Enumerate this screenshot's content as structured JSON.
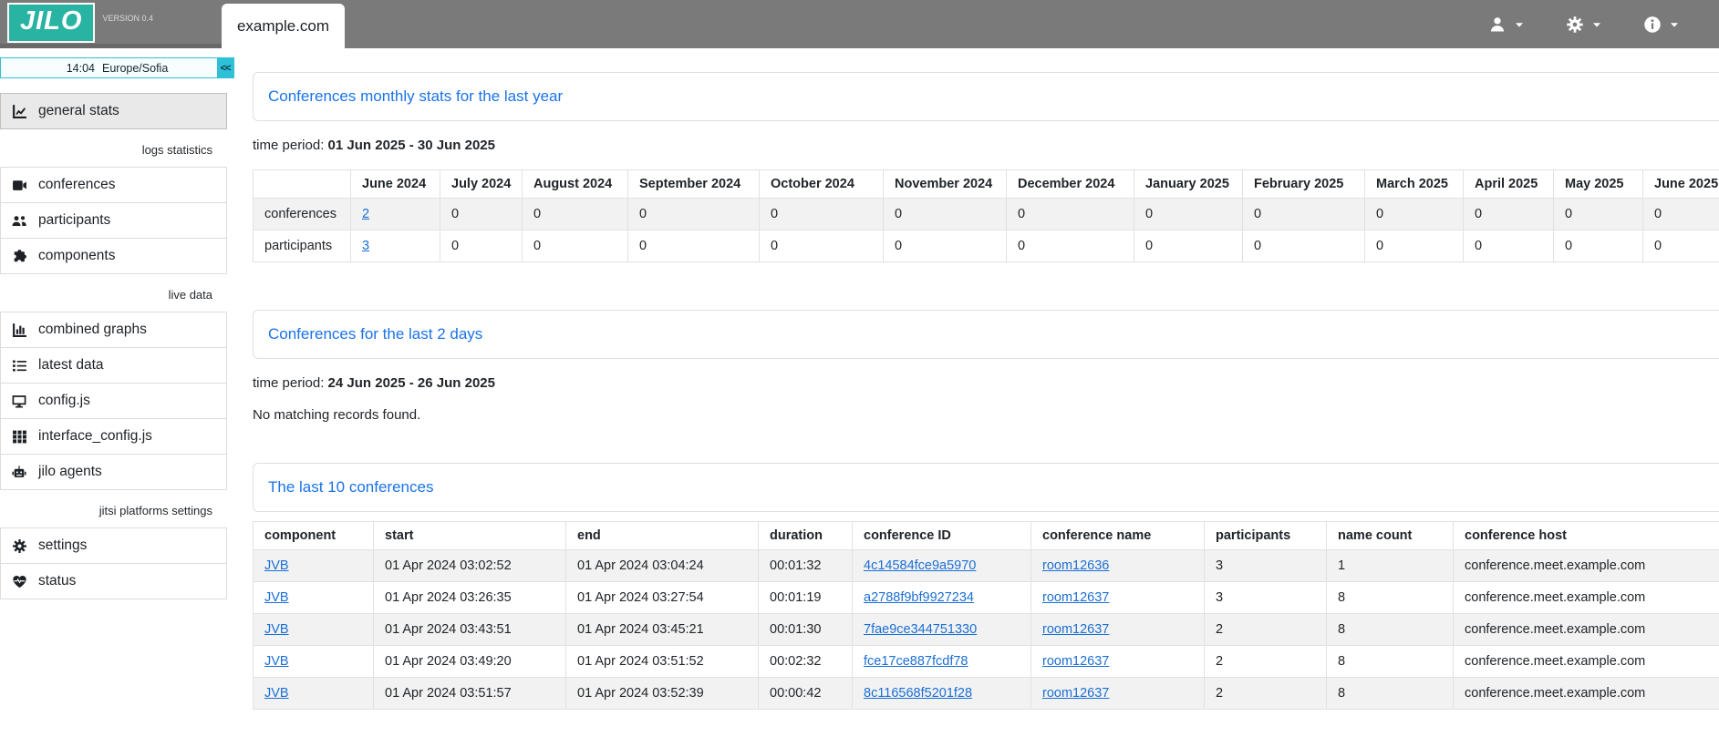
{
  "header": {
    "logo_text": "JILO",
    "version": "VERSION 0.4",
    "tab_label": "example.com",
    "menu_icons": [
      "user-icon",
      "gear-icon",
      "info-icon"
    ]
  },
  "sidebar": {
    "clock": {
      "time": "14:04",
      "timezone": "Europe/Sofia",
      "collapse_button": "<<"
    },
    "sections": [
      {
        "label": "",
        "items": [
          {
            "label": "general stats",
            "icon": "chart-line-icon",
            "active": true
          }
        ]
      },
      {
        "label": "logs statistics",
        "items": [
          {
            "label": "conferences",
            "icon": "video-camera-icon"
          },
          {
            "label": "participants",
            "icon": "users-icon"
          },
          {
            "label": "components",
            "icon": "puzzle-piece-icon"
          }
        ]
      },
      {
        "label": "live data",
        "items": [
          {
            "label": "combined graphs",
            "icon": "chart-column-icon"
          },
          {
            "label": "latest data",
            "icon": "list-icon"
          },
          {
            "label": "config.js",
            "icon": "desktop-icon"
          },
          {
            "label": "interface_config.js",
            "icon": "grid-icon"
          },
          {
            "label": "jilo agents",
            "icon": "robot-icon"
          }
        ]
      },
      {
        "label": "jitsi platforms settings",
        "items": [
          {
            "label": "settings",
            "icon": "gear-icon"
          },
          {
            "label": "status",
            "icon": "heart-pulse-icon"
          }
        ]
      }
    ]
  },
  "main": {
    "monthly_stats": {
      "title": "Conferences monthly stats for the last year",
      "time_period_label": "time period:",
      "time_period_value": "01 Jun 2025 - 30 Jun 2025",
      "table": {
        "columns": [
          "",
          "June 2024",
          "July 2024",
          "August 2024",
          "September 2024",
          "October 2024",
          "November 2024",
          "December 2024",
          "January 2025",
          "February 2025",
          "March 2025",
          "April 2025",
          "May 2025",
          "June 2025"
        ],
        "rows": [
          {
            "cells": [
              "conferences",
              {
                "text": "2",
                "link": true
              },
              "0",
              "0",
              "0",
              "0",
              "0",
              "0",
              "0",
              "0",
              "0",
              "0",
              "0",
              "0"
            ]
          },
          {
            "cells": [
              "participants",
              {
                "text": "3",
                "link": true
              },
              "0",
              "0",
              "0",
              "0",
              "0",
              "0",
              "0",
              "0",
              "0",
              "0",
              "0",
              "0"
            ]
          }
        ]
      }
    },
    "last_2_days": {
      "title": "Conferences for the last 2 days",
      "time_period_label": "time period:",
      "time_period_value": "24 Jun 2025 - 26 Jun 2025",
      "empty_message": "No matching records found."
    },
    "last_10": {
      "title": "The last 10 conferences",
      "table": {
        "columns": [
          "component",
          "start",
          "end",
          "duration",
          "conference ID",
          "conference name",
          "participants",
          "name count",
          "conference host"
        ],
        "rows": [
          {
            "cells": [
              {
                "text": "JVB",
                "link": true
              },
              "01 Apr 2024 03:02:52",
              "01 Apr 2024 03:04:24",
              "00:01:32",
              {
                "text": "4c14584fce9a5970",
                "link": true
              },
              {
                "text": "room12636",
                "link": true
              },
              "3",
              "1",
              "conference.meet.example.com"
            ]
          },
          {
            "cells": [
              {
                "text": "JVB",
                "link": true
              },
              "01 Apr 2024 03:26:35",
              "01 Apr 2024 03:27:54",
              "00:01:19",
              {
                "text": "a2788f9bf9927234",
                "link": true
              },
              {
                "text": "room12637",
                "link": true
              },
              "3",
              "8",
              "conference.meet.example.com"
            ]
          },
          {
            "cells": [
              {
                "text": "JVB",
                "link": true
              },
              "01 Apr 2024 03:43:51",
              "01 Apr 2024 03:45:21",
              "00:01:30",
              {
                "text": "7fae9ce344751330",
                "link": true
              },
              {
                "text": "room12637",
                "link": true
              },
              "2",
              "8",
              "conference.meet.example.com"
            ]
          },
          {
            "cells": [
              {
                "text": "JVB",
                "link": true
              },
              "01 Apr 2024 03:49:20",
              "01 Apr 2024 03:51:52",
              "00:02:32",
              {
                "text": "fce17ce887fcdf78",
                "link": true
              },
              {
                "text": "room12637",
                "link": true
              },
              "2",
              "8",
              "conference.meet.example.com"
            ]
          },
          {
            "cells": [
              {
                "text": "JVB",
                "link": true
              },
              "01 Apr 2024 03:51:57",
              "01 Apr 2024 03:52:39",
              "00:00:42",
              {
                "text": "8c116568f5201f28",
                "link": true
              },
              {
                "text": "room12637",
                "link": true
              },
              "2",
              "8",
              "conference.meet.example.com"
            ]
          }
        ]
      }
    }
  }
}
